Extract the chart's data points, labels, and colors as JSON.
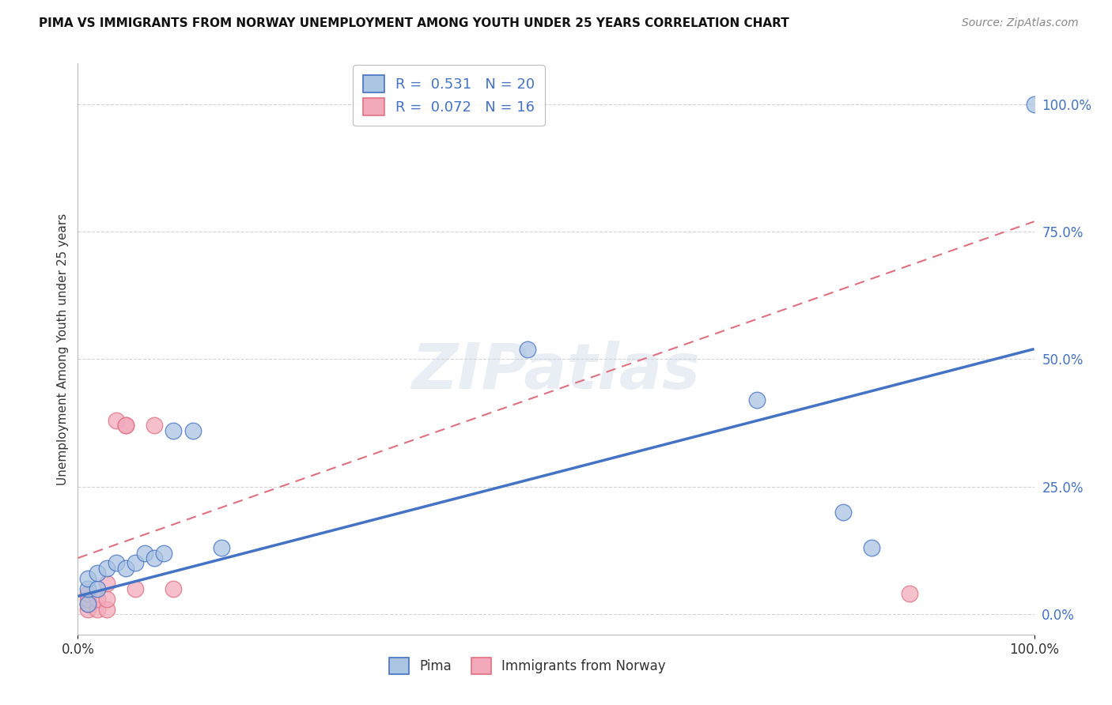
{
  "title": "PIMA VS IMMIGRANTS FROM NORWAY UNEMPLOYMENT AMONG YOUTH UNDER 25 YEARS CORRELATION CHART",
  "source": "Source: ZipAtlas.com",
  "ylabel": "Unemployment Among Youth under 25 years",
  "xlim": [
    0,
    1.0
  ],
  "ylim": [
    -0.04,
    1.08
  ],
  "ytick_labels": [
    "0.0%",
    "25.0%",
    "50.0%",
    "75.0%",
    "100.0%"
  ],
  "ytick_values": [
    0.0,
    0.25,
    0.5,
    0.75,
    1.0
  ],
  "xtick_labels": [
    "0.0%",
    "100.0%"
  ],
  "xtick_values": [
    0.0,
    1.0
  ],
  "pima_R": "0.531",
  "pima_N": "20",
  "norway_R": "0.072",
  "norway_N": "16",
  "pima_color": "#aac4e2",
  "norway_color": "#f2aabb",
  "pima_line_color": "#4472c4",
  "norway_line_color": "#e07080",
  "pima_points_x": [
    0.01,
    0.01,
    0.01,
    0.02,
    0.02,
    0.03,
    0.04,
    0.05,
    0.06,
    0.07,
    0.08,
    0.09,
    0.1,
    0.12,
    0.15,
    0.47,
    0.71,
    0.8,
    0.83,
    1.0
  ],
  "pima_points_y": [
    0.02,
    0.05,
    0.07,
    0.05,
    0.08,
    0.09,
    0.1,
    0.09,
    0.1,
    0.12,
    0.11,
    0.12,
    0.36,
    0.36,
    0.13,
    0.52,
    0.42,
    0.2,
    0.13,
    1.0
  ],
  "norway_points_x": [
    0.01,
    0.01,
    0.01,
    0.01,
    0.02,
    0.02,
    0.03,
    0.03,
    0.03,
    0.04,
    0.05,
    0.05,
    0.06,
    0.08,
    0.1,
    0.87
  ],
  "norway_points_y": [
    0.01,
    0.02,
    0.03,
    0.04,
    0.01,
    0.03,
    0.01,
    0.03,
    0.06,
    0.38,
    0.37,
    0.37,
    0.05,
    0.37,
    0.05,
    0.04
  ],
  "pima_line_x0": 0.0,
  "pima_line_y0": 0.035,
  "pima_line_x1": 1.0,
  "pima_line_y1": 0.52,
  "norway_line_x0": 0.0,
  "norway_line_y0": 0.11,
  "norway_line_x1": 1.0,
  "norway_line_y1": 0.77,
  "watermark": "ZIPatlas",
  "background_color": "#ffffff",
  "grid_color": "#c8c8c8"
}
